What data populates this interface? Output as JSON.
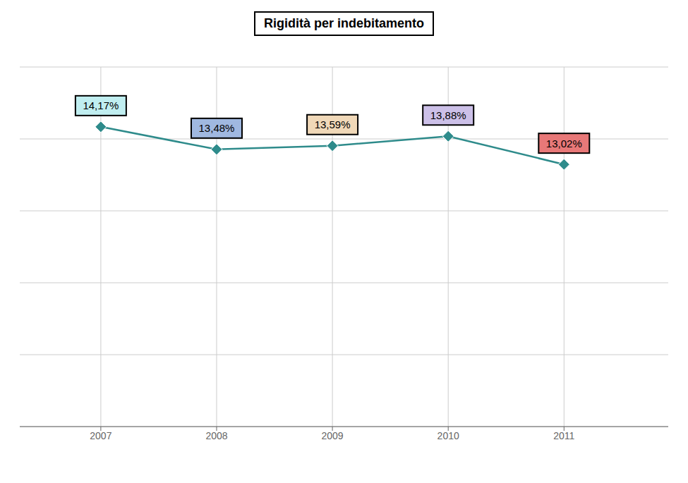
{
  "chart_data": {
    "type": "line",
    "title": "Rigidità per indebitamento",
    "x": [
      2007,
      2008,
      2009,
      2010,
      2011
    ],
    "values": [
      14.17,
      13.48,
      13.59,
      13.88,
      13.02
    ],
    "value_labels": [
      "14,17%",
      "13,48%",
      "13,59%",
      "13,88%",
      "13,02%"
    ],
    "data_labels": true,
    "color": "#2e8b8b",
    "colors": [
      "#c0eef0",
      "#a0b8e0",
      "#f0d8b8",
      "#ccc0e8",
      "#e87878"
    ],
    "marker": "diamond",
    "xlim": [
      2006.3,
      2011.9
    ],
    "xticks": [
      2007,
      2008,
      2009,
      2010,
      2011
    ],
    "ylim": [
      5.0,
      16.0
    ],
    "yticks": [
      5.0,
      7.2,
      9.4,
      11.6,
      13.8,
      16.0
    ],
    "grid": true,
    "tick_labels": "x"
  }
}
